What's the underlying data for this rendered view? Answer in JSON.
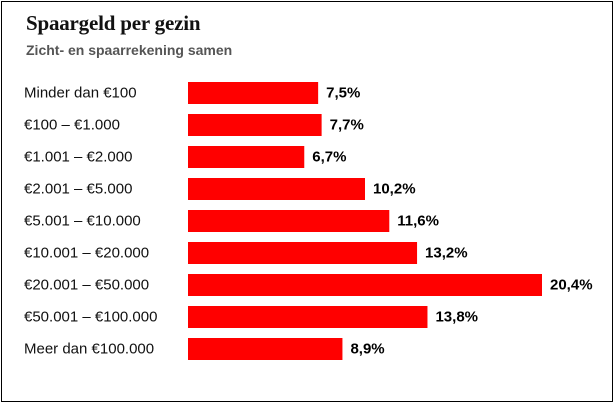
{
  "chart_data": {
    "type": "bar",
    "orientation": "horizontal",
    "title": "Spaargeld per gezin",
    "subtitle": "Zicht- en spaarrekening samen",
    "categories": [
      "Minder dan €100",
      "€100 – €1.000",
      "€1.001 – €2.000",
      "€2.001 – €5.000",
      "€5.001 – €10.000",
      "€10.001 – €20.000",
      "€20.001 – €50.000",
      "€50.001 – €100.000",
      "Meer dan €100.000"
    ],
    "values": [
      7.5,
      7.7,
      6.7,
      10.2,
      11.6,
      13.2,
      20.4,
      13.8,
      8.9
    ],
    "value_labels": [
      "7,5%",
      "7,7%",
      "6,7%",
      "10,2%",
      "11,6%",
      "13,2%",
      "20,4%",
      "13,8%",
      "8,9%"
    ],
    "unit": "%",
    "bar_color": "#ff0000",
    "xlim": [
      0,
      20.4
    ],
    "grid": false,
    "legend": "none"
  }
}
